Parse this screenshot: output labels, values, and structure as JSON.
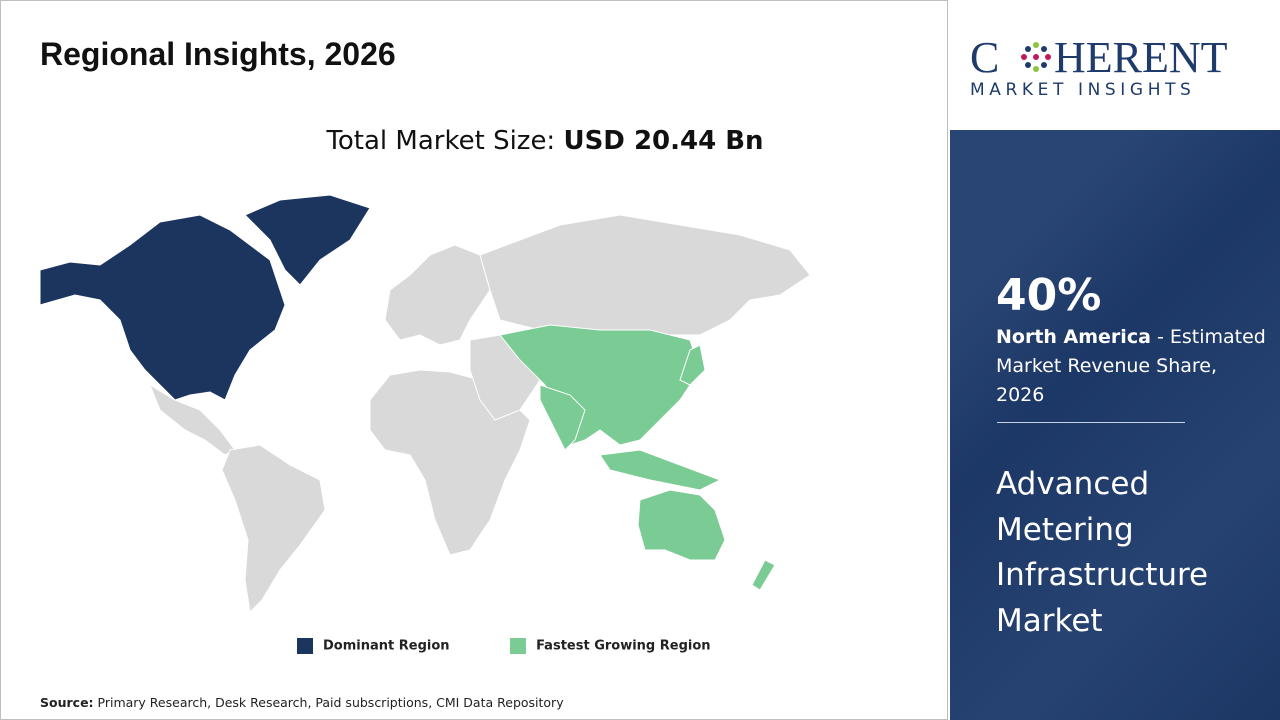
{
  "header": {
    "title": "Regional Insights, 2026"
  },
  "market_size": {
    "label": "Total Market Size:",
    "value": "USD 20.44 Bn"
  },
  "legend": [
    {
      "label": "Dominant Region",
      "color": "#1b355f"
    },
    {
      "label": "Fastest Growing Region",
      "color": "#7bcb95"
    }
  ],
  "source": {
    "label": "Source:",
    "text": "Primary Research, Desk Research, Paid subscriptions, CMI Data Repository"
  },
  "brand": {
    "name_start": "C",
    "name_end": "HERENT",
    "tagline": "MARKET INSIGHTS"
  },
  "sidebar": {
    "share": "40%",
    "region": "North America",
    "description": "- Estimated Market Revenue Share, 2026",
    "market": "Advanced Metering Infrastructure Market"
  }
}
